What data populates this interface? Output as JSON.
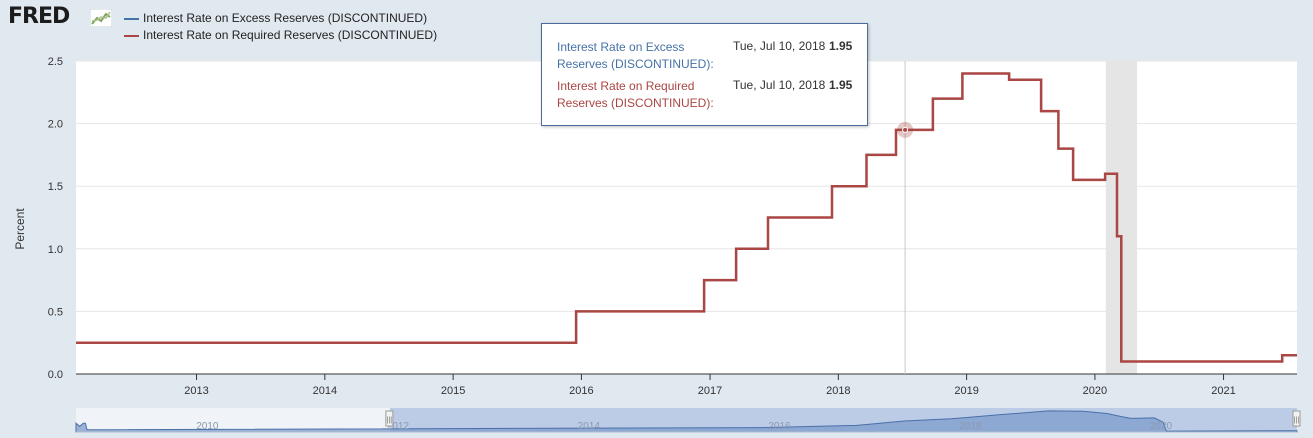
{
  "brand": {
    "logo_text": "FRED"
  },
  "legend": {
    "items": [
      {
        "label": "Interest Rate on Excess Reserves (DISCONTINUED)",
        "color": "#4572a7"
      },
      {
        "label": "Interest Rate on Required Reserves (DISCONTINUED)",
        "color": "#aa4643"
      }
    ]
  },
  "tooltip": {
    "rows": [
      {
        "name": "Interest Rate on Excess Reserves (DISCONTINUED):",
        "date": "Tue, Jul 10, 2018",
        "value": "1.95",
        "color": "#4572a7"
      },
      {
        "name": "Interest Rate on Required Reserves (DISCONTINUED):",
        "date": "Tue, Jul 10, 2018",
        "value": "1.95",
        "color": "#aa4643"
      }
    ]
  },
  "chart_data": {
    "type": "line",
    "ylabel": "Percent",
    "ylim": [
      0,
      2.5
    ],
    "yticks": [
      "0.0",
      "0.5",
      "1.0",
      "1.5",
      "2.0",
      "2.5"
    ],
    "xticks": [
      "2013",
      "2014",
      "2015",
      "2016",
      "2017",
      "2018",
      "2019",
      "2020",
      "2021"
    ],
    "xlim": [
      "2012-01-24",
      "2021-07-29"
    ],
    "grid": true,
    "legend_position": "top-left",
    "recession_shading": {
      "start": "2020-02-01",
      "end": "2020-04-30"
    },
    "crosshair": {
      "x": "2018-07-10",
      "y": 1.95
    },
    "series": [
      {
        "name": "Interest Rate on Excess Reserves (DISCONTINUED)",
        "color": "#4572a7",
        "points": [
          [
            "2012-01-24",
            0.25
          ],
          [
            "2015-12-17",
            0.5
          ],
          [
            "2016-12-15",
            0.75
          ],
          [
            "2017-03-16",
            1.0
          ],
          [
            "2017-06-15",
            1.25
          ],
          [
            "2017-12-14",
            1.5
          ],
          [
            "2018-03-22",
            1.75
          ],
          [
            "2018-06-14",
            1.95
          ],
          [
            "2018-09-27",
            2.2
          ],
          [
            "2018-12-20",
            2.4
          ],
          [
            "2019-05-02",
            2.35
          ],
          [
            "2019-08-01",
            2.1
          ],
          [
            "2019-09-19",
            1.8
          ],
          [
            "2019-10-31",
            1.55
          ],
          [
            "2020-01-30",
            1.6
          ],
          [
            "2020-03-04",
            1.1
          ],
          [
            "2020-03-16",
            0.1
          ],
          [
            "2021-06-17",
            0.15
          ],
          [
            "2021-07-29",
            0.15
          ]
        ]
      },
      {
        "name": "Interest Rate on Required Reserves (DISCONTINUED)",
        "color": "#aa4643",
        "points": [
          [
            "2012-01-24",
            0.25
          ],
          [
            "2015-12-17",
            0.5
          ],
          [
            "2016-12-15",
            0.75
          ],
          [
            "2017-03-16",
            1.0
          ],
          [
            "2017-06-15",
            1.25
          ],
          [
            "2017-12-14",
            1.5
          ],
          [
            "2018-03-22",
            1.75
          ],
          [
            "2018-06-14",
            1.95
          ],
          [
            "2018-09-27",
            2.2
          ],
          [
            "2018-12-20",
            2.4
          ],
          [
            "2019-05-02",
            2.35
          ],
          [
            "2019-08-01",
            2.1
          ],
          [
            "2019-09-19",
            1.8
          ],
          [
            "2019-10-31",
            1.55
          ],
          [
            "2020-01-30",
            1.6
          ],
          [
            "2020-03-04",
            1.1
          ],
          [
            "2020-03-16",
            0.1
          ],
          [
            "2021-06-17",
            0.15
          ],
          [
            "2021-07-29",
            0.15
          ]
        ]
      }
    ]
  },
  "navigator": {
    "labels": [
      "2010",
      "2012",
      "2014",
      "2016",
      "2018",
      "2020"
    ],
    "handle_glyph": "|||",
    "range": [
      "2012-01-24",
      "2021-07-29"
    ],
    "xlim": [
      "2008-10-09",
      "2021-07-29"
    ],
    "profile": [
      [
        "2008-10-09",
        1.0
      ],
      [
        "2008-10-23",
        0.65
      ],
      [
        "2008-11-06",
        1.0
      ],
      [
        "2008-11-14",
        1.0
      ],
      [
        "2008-11-20",
        0.25
      ],
      [
        "2015-12-17",
        0.5
      ],
      [
        "2016-12-15",
        0.75
      ],
      [
        "2017-03-16",
        1.0
      ],
      [
        "2017-06-15",
        1.25
      ],
      [
        "2017-12-14",
        1.5
      ],
      [
        "2018-03-22",
        1.75
      ],
      [
        "2018-06-14",
        1.95
      ],
      [
        "2018-09-27",
        2.2
      ],
      [
        "2018-12-20",
        2.4
      ],
      [
        "2019-05-02",
        2.35
      ],
      [
        "2019-08-01",
        2.1
      ],
      [
        "2019-09-19",
        1.8
      ],
      [
        "2019-10-31",
        1.55
      ],
      [
        "2020-01-30",
        1.6
      ],
      [
        "2020-03-04",
        1.1
      ],
      [
        "2020-03-16",
        0.1
      ],
      [
        "2021-06-17",
        0.15
      ],
      [
        "2021-07-29",
        0.15
      ]
    ]
  }
}
